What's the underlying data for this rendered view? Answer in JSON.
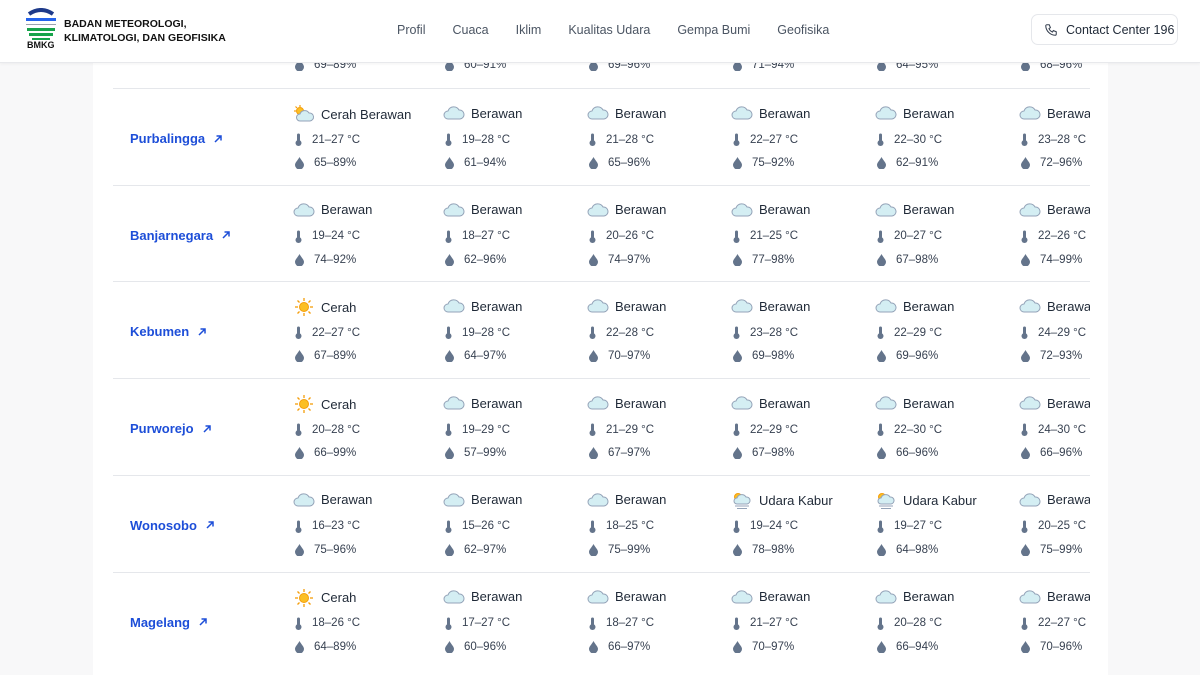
{
  "header": {
    "org_line1": "BADAN METEOROLOGI,",
    "org_line2": "KLIMATOLOGI, DAN GEOFISIKA",
    "logo_text": "BMKG",
    "nav": [
      "Profil",
      "Cuaca",
      "Iklim",
      "Kualitas Udara",
      "Gempa Bumi",
      "Geofisika"
    ],
    "contact_label": "Contact Center 196"
  },
  "partial_row": {
    "humidity": [
      "69–89%",
      "60–91%",
      "69–96%",
      "71–94%",
      "64–95%",
      "68–96%"
    ]
  },
  "colors": {
    "link": "#1d4ed8",
    "icon": "#64748b"
  },
  "rows": [
    {
      "city": "Purbalingga",
      "days": [
        {
          "icon": "partly-cloudy",
          "cond": "Cerah Berawan",
          "temp": "21–27 °C",
          "hum": "65–89%"
        },
        {
          "icon": "cloud",
          "cond": "Berawan",
          "temp": "19–28 °C",
          "hum": "61–94%"
        },
        {
          "icon": "cloud",
          "cond": "Berawan",
          "temp": "21–28 °C",
          "hum": "65–96%"
        },
        {
          "icon": "cloud",
          "cond": "Berawan",
          "temp": "22–27 °C",
          "hum": "75–92%"
        },
        {
          "icon": "cloud",
          "cond": "Berawan",
          "temp": "22–30 °C",
          "hum": "62–91%"
        },
        {
          "icon": "cloud",
          "cond": "Berawan",
          "temp": "23–28 °C",
          "hum": "72–96%"
        }
      ]
    },
    {
      "city": "Banjarnegara",
      "days": [
        {
          "icon": "cloud",
          "cond": "Berawan",
          "temp": "19–24 °C",
          "hum": "74–92%"
        },
        {
          "icon": "cloud",
          "cond": "Berawan",
          "temp": "18–27 °C",
          "hum": "62–96%"
        },
        {
          "icon": "cloud",
          "cond": "Berawan",
          "temp": "20–26 °C",
          "hum": "74–97%"
        },
        {
          "icon": "cloud",
          "cond": "Berawan",
          "temp": "21–25 °C",
          "hum": "77–98%"
        },
        {
          "icon": "cloud",
          "cond": "Berawan",
          "temp": "20–27 °C",
          "hum": "67–98%"
        },
        {
          "icon": "cloud",
          "cond": "Berawan",
          "temp": "22–26 °C",
          "hum": "74–99%"
        }
      ]
    },
    {
      "city": "Kebumen",
      "days": [
        {
          "icon": "sun",
          "cond": "Cerah",
          "temp": "22–27 °C",
          "hum": "67–89%"
        },
        {
          "icon": "cloud",
          "cond": "Berawan",
          "temp": "19–28 °C",
          "hum": "64–97%"
        },
        {
          "icon": "cloud",
          "cond": "Berawan",
          "temp": "22–28 °C",
          "hum": "70–97%"
        },
        {
          "icon": "cloud",
          "cond": "Berawan",
          "temp": "23–28 °C",
          "hum": "69–98%"
        },
        {
          "icon": "cloud",
          "cond": "Berawan",
          "temp": "22–29 °C",
          "hum": "69–96%"
        },
        {
          "icon": "cloud",
          "cond": "Berawan",
          "temp": "24–29 °C",
          "hum": "72–93%"
        }
      ]
    },
    {
      "city": "Purworejo",
      "days": [
        {
          "icon": "sun",
          "cond": "Cerah",
          "temp": "20–28 °C",
          "hum": "66–99%"
        },
        {
          "icon": "cloud",
          "cond": "Berawan",
          "temp": "19–29 °C",
          "hum": "57–99%"
        },
        {
          "icon": "cloud",
          "cond": "Berawan",
          "temp": "21–29 °C",
          "hum": "67–97%"
        },
        {
          "icon": "cloud",
          "cond": "Berawan",
          "temp": "22–29 °C",
          "hum": "67–98%"
        },
        {
          "icon": "cloud",
          "cond": "Berawan",
          "temp": "22–30 °C",
          "hum": "66–96%"
        },
        {
          "icon": "cloud",
          "cond": "Berawan",
          "temp": "24–30 °C",
          "hum": "66–96%"
        }
      ]
    },
    {
      "city": "Wonosobo",
      "days": [
        {
          "icon": "cloud",
          "cond": "Berawan",
          "temp": "16–23 °C",
          "hum": "75–96%"
        },
        {
          "icon": "cloud",
          "cond": "Berawan",
          "temp": "15–26 °C",
          "hum": "62–97%"
        },
        {
          "icon": "cloud",
          "cond": "Berawan",
          "temp": "18–25 °C",
          "hum": "75–99%"
        },
        {
          "icon": "haze",
          "cond": "Udara Kabur",
          "temp": "19–24 °C",
          "hum": "78–98%"
        },
        {
          "icon": "haze",
          "cond": "Udara Kabur",
          "temp": "19–27 °C",
          "hum": "64–98%"
        },
        {
          "icon": "cloud",
          "cond": "Berawan",
          "temp": "20–25 °C",
          "hum": "75–99%"
        }
      ]
    },
    {
      "city": "Magelang",
      "days": [
        {
          "icon": "sun",
          "cond": "Cerah",
          "temp": "18–26 °C",
          "hum": "64–89%"
        },
        {
          "icon": "cloud",
          "cond": "Berawan",
          "temp": "17–27 °C",
          "hum": "60–96%"
        },
        {
          "icon": "cloud",
          "cond": "Berawan",
          "temp": "18–27 °C",
          "hum": "66–97%"
        },
        {
          "icon": "cloud",
          "cond": "Berawan",
          "temp": "21–27 °C",
          "hum": "70–97%"
        },
        {
          "icon": "cloud",
          "cond": "Berawan",
          "temp": "20–28 °C",
          "hum": "66–94%"
        },
        {
          "icon": "cloud",
          "cond": "Berawan",
          "temp": "22–27 °C",
          "hum": "70–96%"
        }
      ]
    }
  ]
}
